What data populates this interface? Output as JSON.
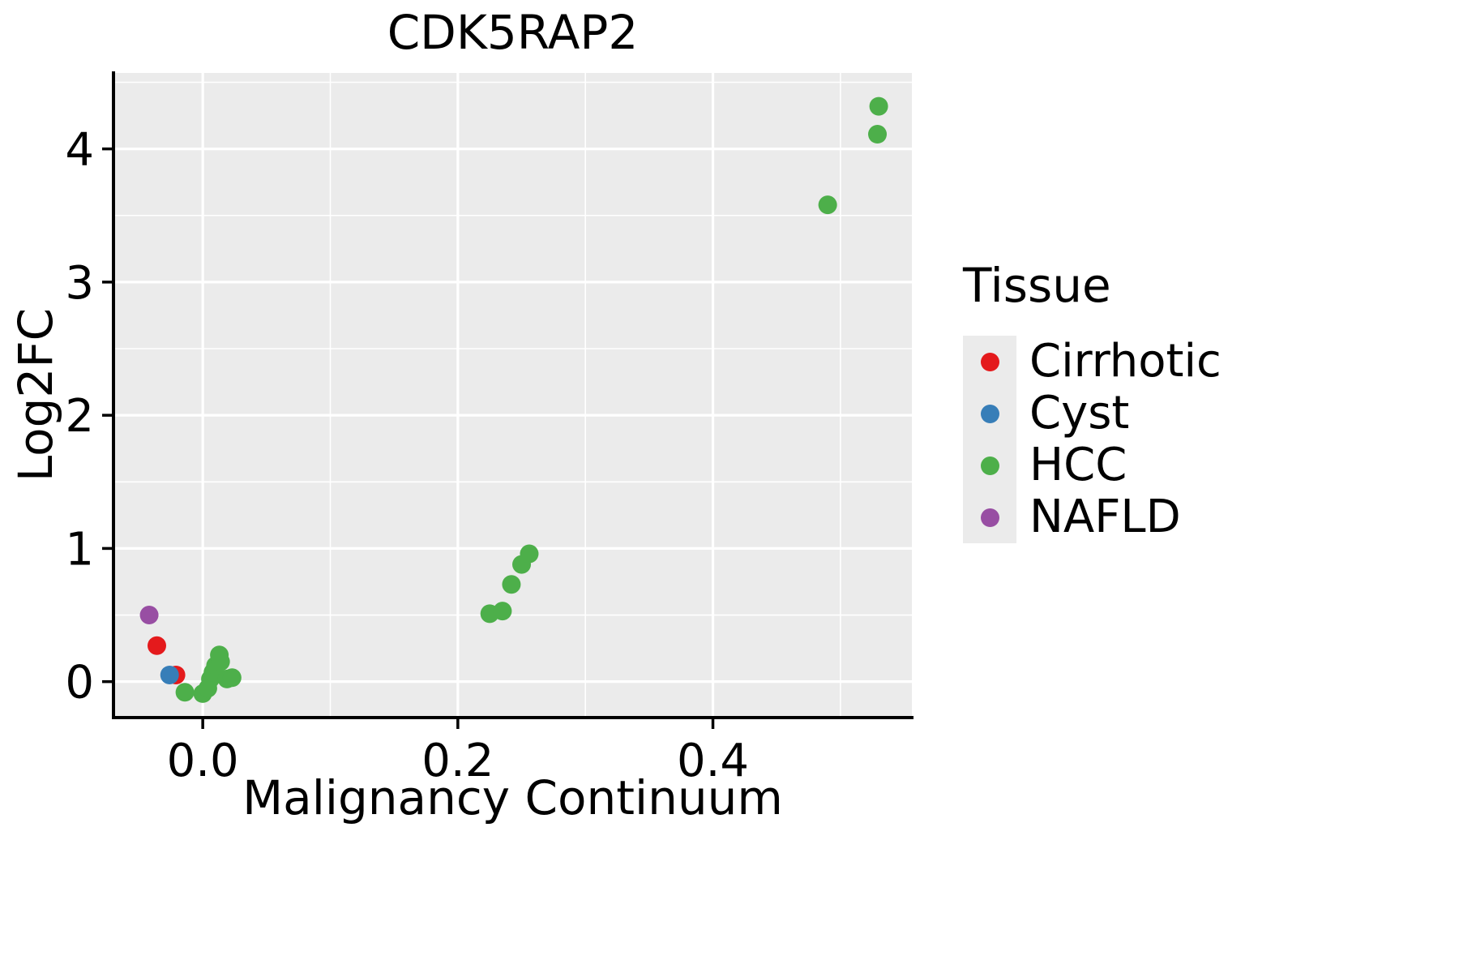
{
  "chart_data": {
    "type": "scatter",
    "title": "CDK5RAP2",
    "xlabel": "Malignancy Continuum",
    "ylabel": "Log2FC",
    "xlim": [
      -0.07,
      0.556
    ],
    "ylim": [
      -0.27,
      4.57
    ],
    "x_ticks": [
      0.0,
      0.2,
      0.4
    ],
    "x_tick_labels": [
      "0.0",
      "0.2",
      "0.4"
    ],
    "x_minor_ticks": [
      0.1,
      0.3,
      0.5
    ],
    "y_ticks": [
      0,
      1,
      2,
      3,
      4
    ],
    "y_tick_labels": [
      "0",
      "1",
      "2",
      "3",
      "4"
    ],
    "y_minor_ticks": [
      0.5,
      1.5,
      2.5,
      3.5,
      4.5
    ],
    "grid": true,
    "panel_background": "#ebebeb",
    "grid_color": "#ffffff",
    "axis_color": "#000000",
    "legend": {
      "title": "Tissue",
      "position": "right",
      "entries": [
        {
          "label": "Cirrhotic",
          "color": "#e41a1c"
        },
        {
          "label": "Cyst",
          "color": "#377eb8"
        },
        {
          "label": "HCC",
          "color": "#4daf4a"
        },
        {
          "label": "NAFLD",
          "color": "#984ea3"
        }
      ]
    },
    "series": [
      {
        "name": "Cirrhotic",
        "color": "#e41a1c",
        "points": [
          [
            -0.036,
            0.27
          ],
          [
            -0.021,
            0.05
          ]
        ]
      },
      {
        "name": "Cyst",
        "color": "#377eb8",
        "points": [
          [
            -0.026,
            0.05
          ]
        ]
      },
      {
        "name": "HCC",
        "color": "#4daf4a",
        "points": [
          [
            -0.014,
            -0.08
          ],
          [
            0.0,
            -0.09
          ],
          [
            0.004,
            -0.05
          ],
          [
            0.006,
            0.02
          ],
          [
            0.008,
            0.07
          ],
          [
            0.01,
            0.12
          ],
          [
            0.013,
            0.2
          ],
          [
            0.014,
            0.15
          ],
          [
            0.019,
            0.02
          ],
          [
            0.023,
            0.03
          ],
          [
            0.225,
            0.51
          ],
          [
            0.235,
            0.53
          ],
          [
            0.242,
            0.73
          ],
          [
            0.25,
            0.88
          ],
          [
            0.256,
            0.96
          ],
          [
            0.49,
            3.58
          ],
          [
            0.529,
            4.11
          ],
          [
            0.53,
            4.32
          ]
        ]
      },
      {
        "name": "NAFLD",
        "color": "#984ea3",
        "points": [
          [
            -0.042,
            0.5
          ]
        ]
      }
    ]
  }
}
